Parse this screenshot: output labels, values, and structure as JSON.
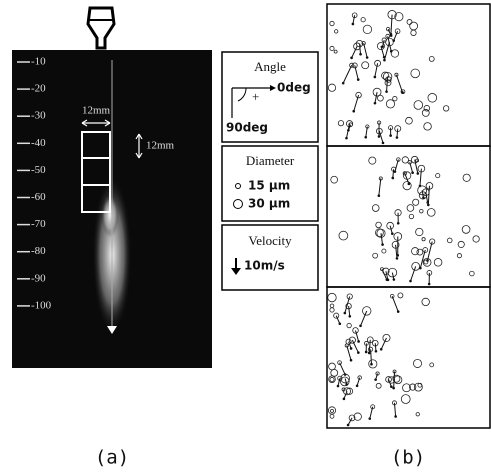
{
  "panel_a": {
    "scale_labels": [
      "-10",
      "-20",
      "-30",
      "-40",
      "-50",
      "-60",
      "-70",
      "-80",
      "-90",
      "-100"
    ],
    "width_label": "12mm",
    "height_label": "12mm",
    "caption": "(a)"
  },
  "legend": {
    "angle": {
      "title": "Angle",
      "zero": "0deg",
      "ninety": "90deg"
    },
    "diameter": {
      "title": "Diameter",
      "small": "15 μm",
      "large": "30 μm"
    },
    "velocity": {
      "title": "Velocity",
      "reference": "10m/s"
    }
  },
  "panel_b": {
    "caption": "(b)"
  }
}
